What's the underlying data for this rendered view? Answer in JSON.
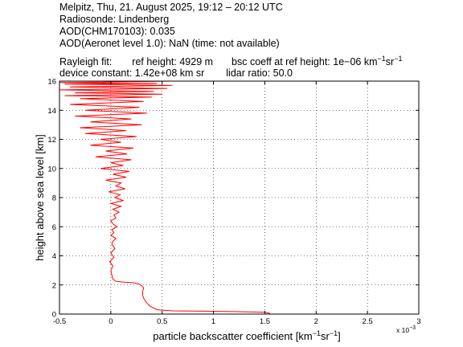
{
  "header": {
    "line1": "Melpitz, Thu, 21. August 2025, 19:12 – 20:12 UTC",
    "line2": "Radiosonde: Lindenberg",
    "line3": "AOD(CHM170103): 0.035",
    "line4": "AOD(Aeronet level 1.0): NaN   (time: not available)",
    "rayleigh_label": "Rayleigh fit:",
    "ref_height": "ref height: 4929 m",
    "bsc_coeff_prefix": "bsc coeff at ref height: 1e−06 km",
    "bsc_coeff_exp1": "−1",
    "bsc_coeff_mid": "sr",
    "bsc_coeff_exp2": "−1",
    "device_constant": "device constant: 1.42e+08 km sr",
    "lidar_ratio": "lidar ratio: 50.0"
  },
  "chart_data": {
    "type": "line",
    "xlabel_main": "particle backscatter coefficient [km",
    "xlabel_exp1": "−1",
    "xlabel_mid": "sr",
    "xlabel_exp2": "−1",
    "xlabel_end": "]",
    "x_scale_label": "x 10",
    "x_scale_exp": "−3",
    "ylabel": "height above sea level [km]",
    "xlim": [
      -0.5,
      3
    ],
    "ylim": [
      0,
      16
    ],
    "xticks": [
      -0.5,
      0,
      0.5,
      1,
      1.5,
      2,
      2.5,
      3
    ],
    "xtick_labels": [
      "-0.5",
      "0",
      "0.5",
      "1",
      "1.5",
      "2",
      "2.5",
      "3"
    ],
    "yticks": [
      0,
      2,
      4,
      6,
      8,
      10,
      12,
      14,
      16
    ],
    "ytick_labels": [
      "0",
      "2",
      "4",
      "6",
      "8",
      "10",
      "12",
      "14",
      "16"
    ],
    "grid": true,
    "series_color": "#ff0000",
    "series": [
      {
        "x": [
          1.55,
          1.5,
          1.2,
          0.9,
          0.6,
          0.45,
          0.38,
          0.34,
          0.32,
          0.31,
          0.31,
          0.32,
          0.3,
          0.27,
          0.22,
          0.12,
          0.05,
          0.02,
          0.01,
          0.0,
          0.02,
          -0.01,
          0.03,
          0.0,
          0.04,
          0.01,
          0.02,
          0.05,
          0.0,
          0.03,
          0.01,
          0.06,
          0.02,
          0.0,
          0.05,
          0.03,
          0.08,
          0.02,
          0.1,
          0.0,
          0.12,
          0.04,
          0.09,
          -0.02,
          0.14,
          0.05,
          0.1,
          -0.05,
          0.15,
          0.02,
          0.18,
          -0.1,
          0.12,
          0.0,
          0.2,
          -0.15,
          0.16,
          -0.05,
          0.22,
          -0.2,
          0.1,
          -0.1,
          0.25,
          -0.25,
          0.15,
          -0.3,
          0.3,
          -0.2,
          0.2,
          -0.35,
          0.35,
          -0.25,
          0.28,
          -0.4,
          0.32,
          -0.3,
          0.4,
          -0.45,
          0.5,
          -0.35,
          0.42,
          -0.5,
          0.55,
          -0.4,
          0.6,
          -0.45,
          0.45,
          -0.5,
          0.58
        ],
        "y": [
          0.05,
          0.12,
          0.17,
          0.2,
          0.22,
          0.3,
          0.55,
          0.85,
          1.1,
          1.3,
          1.55,
          1.8,
          1.95,
          2.08,
          2.15,
          2.2,
          2.25,
          2.4,
          2.7,
          3.0,
          3.3,
          3.6,
          3.9,
          4.2,
          4.5,
          4.8,
          5.0,
          5.2,
          5.4,
          5.6,
          5.8,
          6.0,
          6.2,
          6.4,
          6.6,
          6.8,
          7.0,
          7.2,
          7.4,
          7.6,
          7.8,
          8.0,
          8.2,
          8.4,
          8.6,
          8.8,
          9.0,
          9.2,
          9.4,
          9.6,
          9.8,
          10.0,
          10.2,
          10.4,
          10.6,
          10.8,
          11.0,
          11.2,
          11.4,
          11.6,
          11.8,
          12.0,
          12.2,
          12.4,
          12.6,
          12.8,
          13.0,
          13.2,
          13.4,
          13.6,
          13.8,
          14.0,
          14.2,
          14.4,
          14.6,
          14.8,
          14.9,
          15.0,
          15.1,
          15.2,
          15.3,
          15.4,
          15.5,
          15.6,
          15.7,
          15.8,
          15.85,
          15.9,
          16.0
        ]
      }
    ]
  }
}
